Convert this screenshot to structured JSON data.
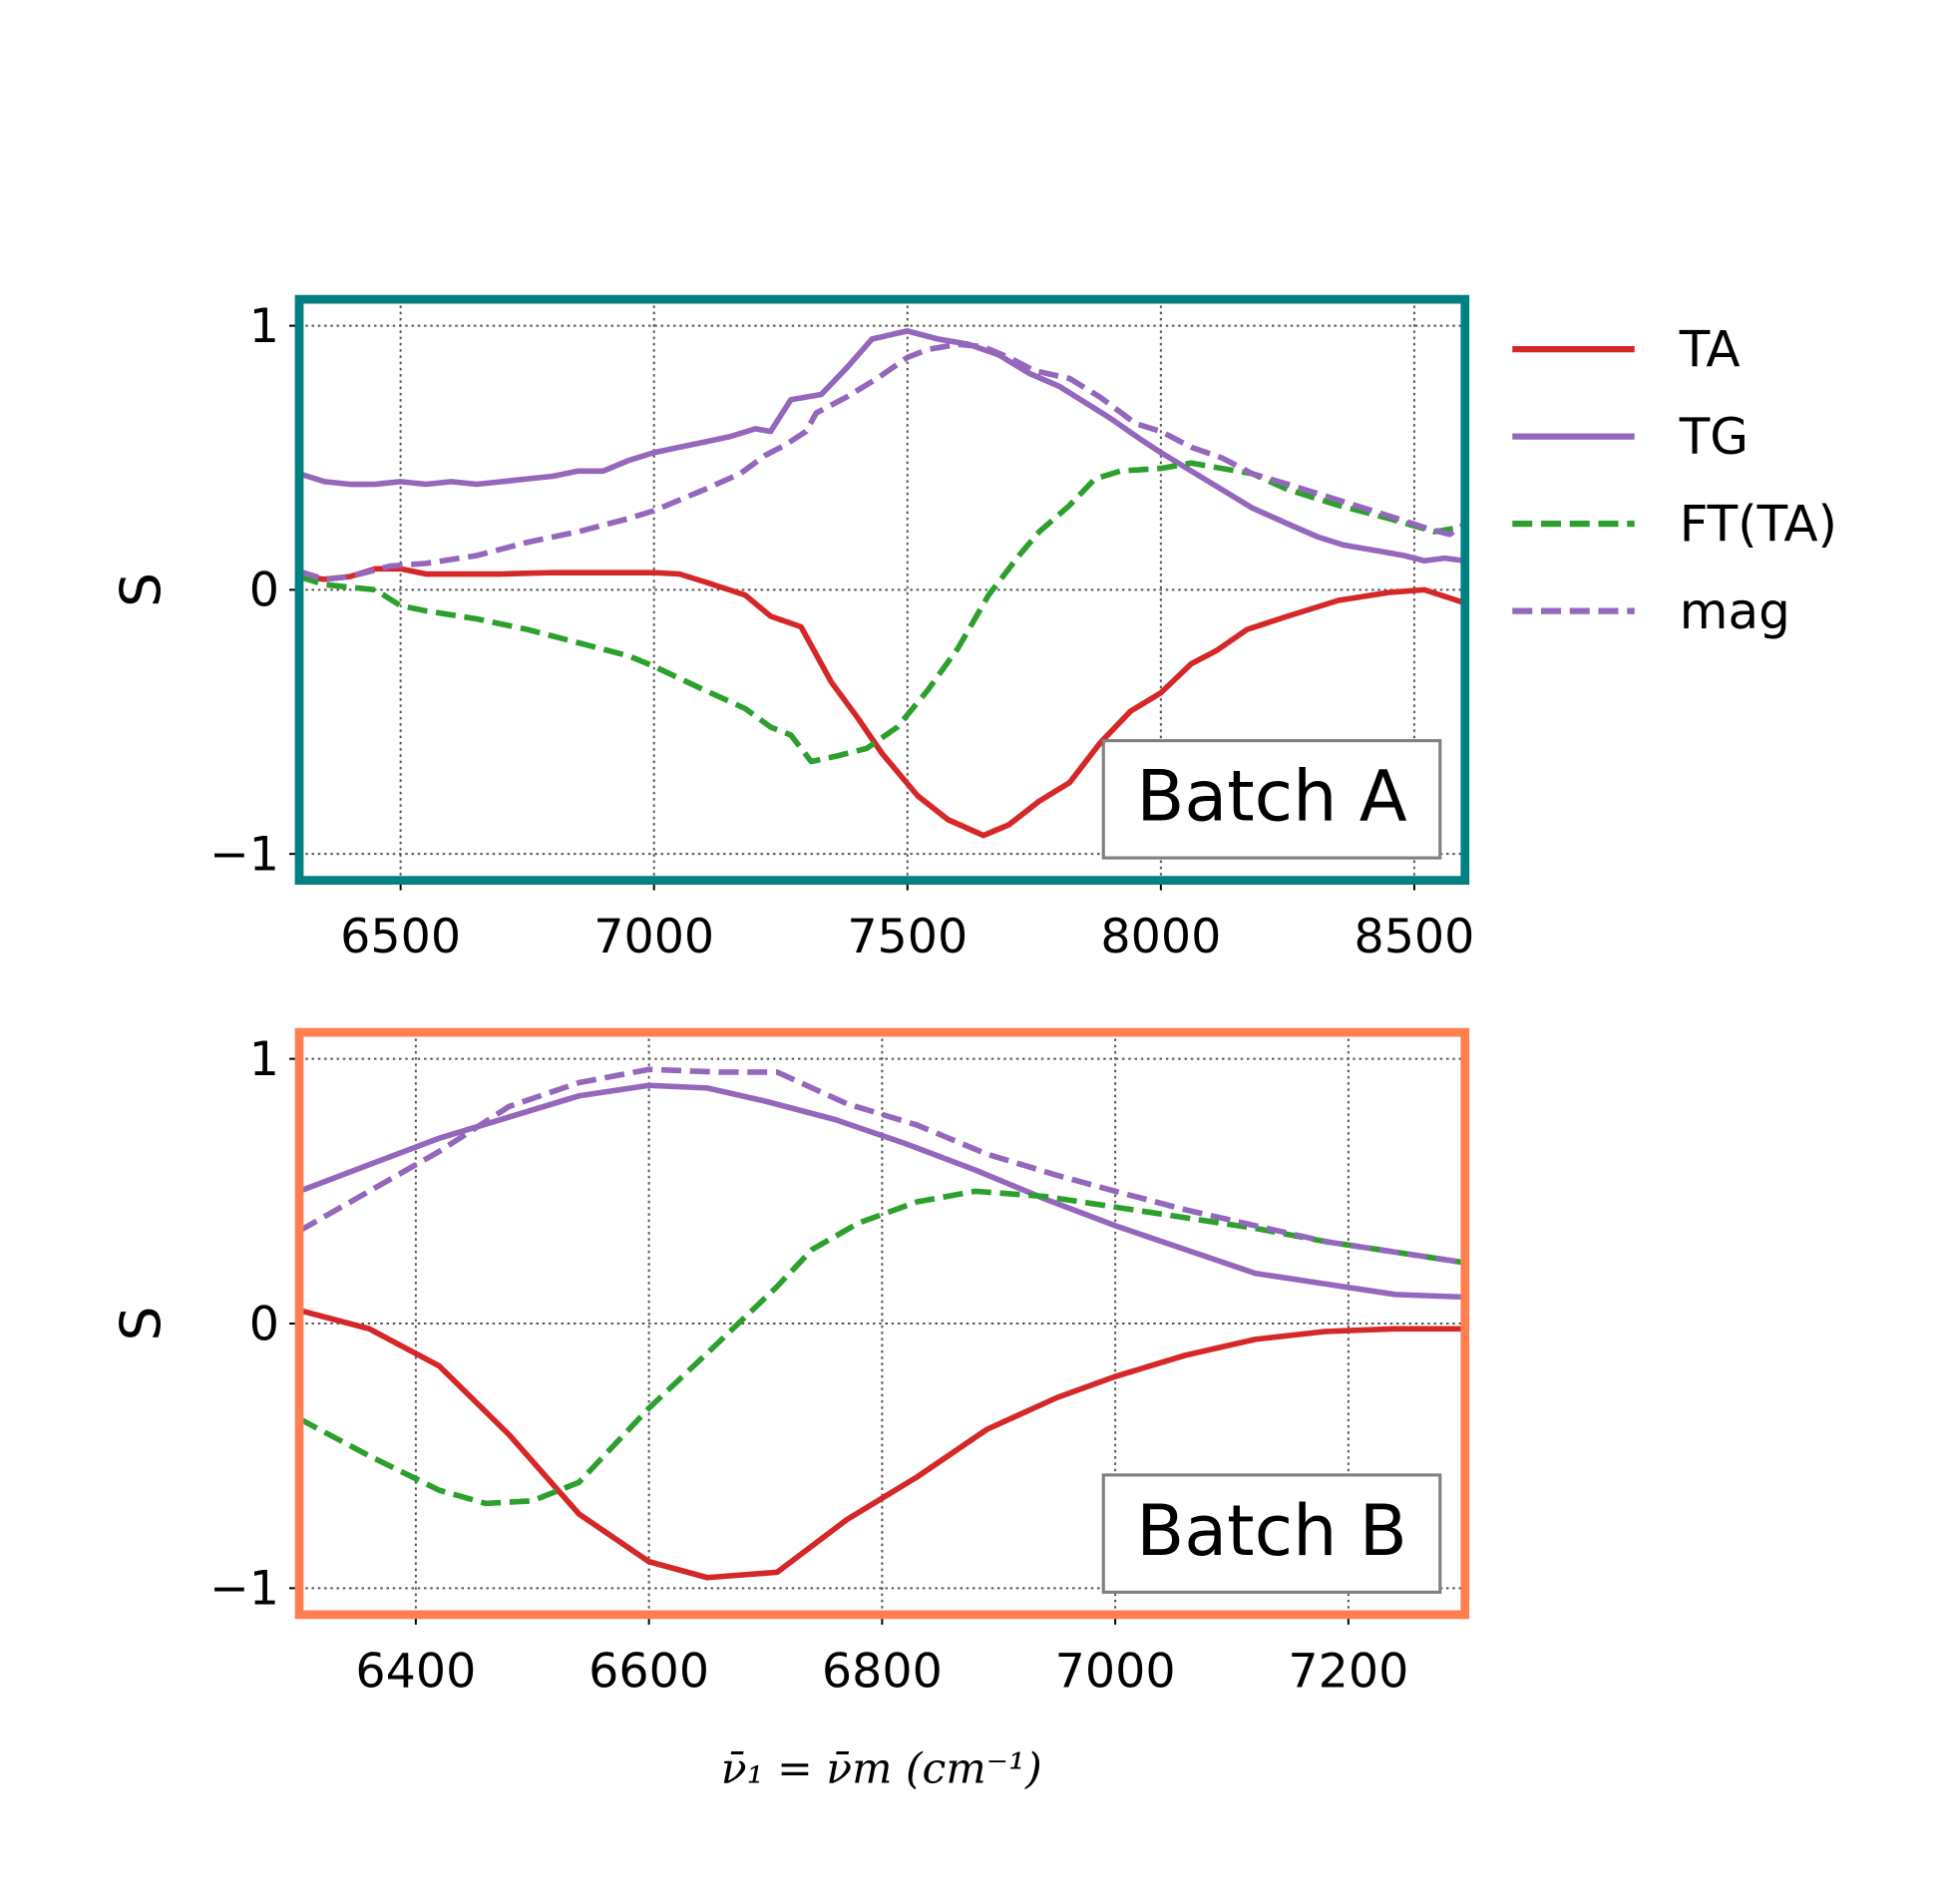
{
  "chart_data": [
    {
      "type": "line",
      "annotation": "Batch A",
      "frame_color": "#008080",
      "ylabel": "S",
      "xlabel": "",
      "xlim": [
        6300,
        8600
      ],
      "ylim": [
        -1.1,
        1.1
      ],
      "xticks": [
        6500,
        7000,
        7500,
        8000,
        8500
      ],
      "yticks": [
        -1,
        0,
        1
      ],
      "ytick_labels": [
        "−1",
        "0",
        "1"
      ],
      "grid": true,
      "series": [
        {
          "name": "TA",
          "color": "#d62728",
          "style": "solid",
          "x": [
            6300,
            6350,
            6400,
            6450,
            6500,
            6550,
            6700,
            6800,
            7000,
            7050,
            7100,
            7180,
            7230,
            7290,
            7350,
            7400,
            7450,
            7520,
            7580,
            7650,
            7700,
            7760,
            7820,
            7880,
            7940,
            8000,
            8060,
            8110,
            8170,
            8250,
            8350,
            8450,
            8520,
            8600
          ],
          "y": [
            0.05,
            0.04,
            0.05,
            0.08,
            0.08,
            0.06,
            0.06,
            0.065,
            0.065,
            0.06,
            0.03,
            -0.02,
            -0.1,
            -0.14,
            -0.35,
            -0.48,
            -0.62,
            -0.78,
            -0.87,
            -0.93,
            -0.89,
            -0.8,
            -0.73,
            -0.58,
            -0.46,
            -0.39,
            -0.28,
            -0.23,
            -0.15,
            -0.1,
            -0.04,
            -0.01,
            0.0,
            -0.05
          ]
        },
        {
          "name": "TG",
          "color": "#9467bd",
          "style": "solid",
          "x": [
            6300,
            6350,
            6400,
            6450,
            6500,
            6550,
            6600,
            6650,
            6700,
            6750,
            6800,
            6850,
            6900,
            6950,
            7000,
            7050,
            7100,
            7150,
            7200,
            7230,
            7270,
            7330,
            7380,
            7430,
            7500,
            7560,
            7620,
            7680,
            7740,
            7800,
            7850,
            7900,
            7960,
            8000,
            8060,
            8120,
            8180,
            8250,
            8310,
            8360,
            8420,
            8480,
            8520,
            8560,
            8600
          ],
          "y": [
            0.44,
            0.41,
            0.4,
            0.4,
            0.41,
            0.4,
            0.41,
            0.4,
            0.41,
            0.42,
            0.43,
            0.45,
            0.45,
            0.49,
            0.52,
            0.54,
            0.56,
            0.58,
            0.61,
            0.6,
            0.72,
            0.74,
            0.84,
            0.95,
            0.98,
            0.95,
            0.93,
            0.89,
            0.82,
            0.77,
            0.71,
            0.65,
            0.57,
            0.52,
            0.45,
            0.38,
            0.31,
            0.25,
            0.2,
            0.17,
            0.15,
            0.13,
            0.11,
            0.12,
            0.11
          ]
        },
        {
          "name": "FT(TA)",
          "color": "#2ca02c",
          "style": "dashed",
          "x": [
            6300,
            6350,
            6450,
            6500,
            6550,
            6650,
            6750,
            6850,
            6950,
            7000,
            7100,
            7180,
            7230,
            7270,
            7310,
            7360,
            7420,
            7480,
            7540,
            7600,
            7660,
            7720,
            7760,
            7820,
            7870,
            7920,
            8000,
            8060,
            8120,
            8180,
            8250,
            8350,
            8450,
            8540,
            8600
          ],
          "y": [
            0.05,
            0.02,
            0.0,
            -0.06,
            -0.08,
            -0.11,
            -0.15,
            -0.2,
            -0.25,
            -0.29,
            -0.38,
            -0.45,
            -0.52,
            -0.55,
            -0.65,
            -0.63,
            -0.6,
            -0.52,
            -0.38,
            -0.22,
            -0.02,
            0.13,
            0.22,
            0.32,
            0.42,
            0.45,
            0.46,
            0.48,
            0.46,
            0.44,
            0.38,
            0.32,
            0.27,
            0.22,
            0.24
          ]
        },
        {
          "name": "mag",
          "color": "#9467bd",
          "style": "dashed",
          "x": [
            6300,
            6350,
            6400,
            6480,
            6550,
            6650,
            6750,
            6850,
            6950,
            7000,
            7100,
            7170,
            7220,
            7260,
            7300,
            7320,
            7380,
            7440,
            7500,
            7540,
            7600,
            7650,
            7700,
            7750,
            7820,
            7880,
            7950,
            8000,
            8060,
            8120,
            8180,
            8250,
            8350,
            8450,
            8530,
            8570,
            8600
          ],
          "y": [
            0.07,
            0.04,
            0.05,
            0.09,
            0.1,
            0.13,
            0.18,
            0.22,
            0.27,
            0.3,
            0.38,
            0.44,
            0.51,
            0.55,
            0.6,
            0.67,
            0.73,
            0.8,
            0.88,
            0.91,
            0.93,
            0.92,
            0.88,
            0.83,
            0.8,
            0.73,
            0.63,
            0.6,
            0.54,
            0.5,
            0.44,
            0.4,
            0.34,
            0.28,
            0.23,
            0.21,
            0.25
          ]
        }
      ]
    },
    {
      "type": "line",
      "annotation": "Batch B",
      "frame_color": "#ff7f50",
      "ylabel": "S",
      "xlabel": "ν̄₁ = ν̄m (cm⁻¹)",
      "xlim": [
        6300,
        7300
      ],
      "ylim": [
        -1.1,
        1.1
      ],
      "xticks": [
        6400,
        6600,
        6800,
        7000,
        7200
      ],
      "yticks": [
        -1,
        0,
        1
      ],
      "ytick_labels": [
        "−1",
        "0",
        "1"
      ],
      "grid": true,
      "series": [
        {
          "name": "TA",
          "color": "#d62728",
          "style": "solid",
          "x": [
            6300,
            6360,
            6420,
            6480,
            6540,
            6600,
            6650,
            6710,
            6770,
            6830,
            6890,
            6950,
            7000,
            7060,
            7120,
            7180,
            7240,
            7300
          ],
          "y": [
            0.05,
            -0.02,
            -0.16,
            -0.42,
            -0.72,
            -0.9,
            -0.96,
            -0.94,
            -0.74,
            -0.58,
            -0.4,
            -0.28,
            -0.2,
            -0.12,
            -0.06,
            -0.03,
            -0.02,
            -0.02
          ]
        },
        {
          "name": "TG",
          "color": "#9467bd",
          "style": "solid",
          "x": [
            6300,
            6360,
            6420,
            6480,
            6540,
            6600,
            6650,
            6700,
            6760,
            6820,
            6880,
            6940,
            7000,
            7060,
            7120,
            7180,
            7240,
            7300
          ],
          "y": [
            0.5,
            0.6,
            0.7,
            0.78,
            0.86,
            0.9,
            0.89,
            0.84,
            0.77,
            0.68,
            0.58,
            0.47,
            0.37,
            0.28,
            0.19,
            0.15,
            0.11,
            0.1
          ]
        },
        {
          "name": "FT(TA)",
          "color": "#2ca02c",
          "style": "dashed",
          "x": [
            6300,
            6360,
            6420,
            6460,
            6500,
            6540,
            6600,
            6660,
            6710,
            6740,
            6780,
            6830,
            6880,
            6940,
            7000,
            7060,
            7120,
            7180,
            7240,
            7300
          ],
          "y": [
            -0.36,
            -0.5,
            -0.63,
            -0.68,
            -0.67,
            -0.6,
            -0.32,
            -0.07,
            0.14,
            0.28,
            0.38,
            0.46,
            0.5,
            0.48,
            0.44,
            0.4,
            0.36,
            0.31,
            0.27,
            0.23
          ]
        },
        {
          "name": "mag",
          "color": "#9467bd",
          "style": "dashed",
          "x": [
            6300,
            6360,
            6420,
            6480,
            6540,
            6600,
            6660,
            6710,
            6770,
            6830,
            6890,
            6950,
            7000,
            7060,
            7120,
            7180,
            7240,
            7300
          ],
          "y": [
            0.35,
            0.5,
            0.65,
            0.82,
            0.91,
            0.96,
            0.95,
            0.95,
            0.83,
            0.75,
            0.64,
            0.56,
            0.5,
            0.43,
            0.37,
            0.31,
            0.27,
            0.23
          ]
        }
      ]
    }
  ],
  "legend": {
    "placement": "right of top panel",
    "entries": [
      "TA",
      "TG",
      "FT(TA)",
      "mag"
    ]
  }
}
